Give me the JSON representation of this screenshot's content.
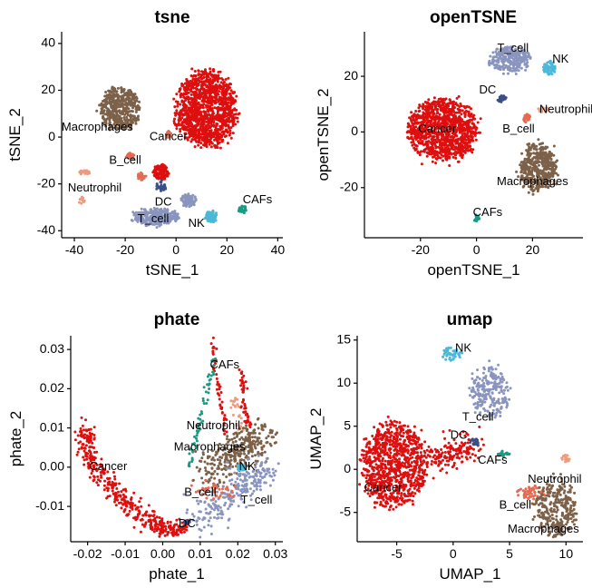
{
  "colors": {
    "Cancer": "#dd0f0f",
    "Macrophages": "#7d6048",
    "T_cell": "#8a95bf",
    "NK": "#4cb8d8",
    "DC": "#3a4f86",
    "B_cell": "#e46a52",
    "Neutrophil": "#ee9a7e",
    "CAFs": "#1a9a82"
  },
  "chart_data": [
    {
      "type": "scatter",
      "title": "tsne",
      "xlabel": "tSNE_1",
      "ylabel": "tSNE_2",
      "xlim": [
        -45,
        42
      ],
      "ylim": [
        -43,
        45
      ],
      "xticks": [
        -40,
        -20,
        0,
        20,
        40
      ],
      "yticks": [
        -40,
        -20,
        0,
        20,
        40
      ],
      "xtick_labels": [
        "-40",
        "-20",
        "0",
        "20",
        "40"
      ],
      "ytick_labels": [
        "-40",
        "-20",
        "0",
        "20",
        "40"
      ],
      "clusters": [
        {
          "name": "Cancer",
          "label": "Cancer",
          "label_xy": [
            -3,
            0
          ],
          "shape": "blob",
          "center": [
            12,
            12
          ],
          "spread": [
            23,
            32
          ],
          "weight": 7
        },
        {
          "name": "Cancer",
          "label": "",
          "label_xy": null,
          "shape": "blob",
          "center": [
            -6,
            -15
          ],
          "spread": [
            6,
            6
          ],
          "weight": 0.7
        },
        {
          "name": "Macrophages",
          "label": "Macrophages",
          "label_xy": [
            -31,
            4
          ],
          "shape": "blob",
          "center": [
            -22,
            12
          ],
          "spread": [
            15,
            18
          ],
          "weight": 2.6
        },
        {
          "name": "B_cell",
          "label": "B_cell",
          "label_xy": [
            -20,
            -10
          ],
          "shape": "blob",
          "center": [
            -18,
            -8
          ],
          "spread": [
            3,
            2.5
          ],
          "weight": 0.2
        },
        {
          "name": "B_cell",
          "label": "",
          "label_xy": null,
          "shape": "blob",
          "center": [
            -3,
            1
          ],
          "spread": [
            2,
            3
          ],
          "weight": 0.1
        },
        {
          "name": "B_cell",
          "label": "",
          "label_xy": null,
          "shape": "blob",
          "center": [
            -14,
            -17
          ],
          "spread": [
            4,
            3
          ],
          "weight": 0.15
        },
        {
          "name": "Neutrophil",
          "label": "Neutrophil",
          "label_xy": [
            -32,
            -22
          ],
          "shape": "blob",
          "center": [
            -36,
            -15
          ],
          "spread": [
            4,
            2
          ],
          "weight": 0.18
        },
        {
          "name": "Neutrophil",
          "label": "",
          "label_xy": null,
          "shape": "blob",
          "center": [
            -37,
            -27
          ],
          "spread": [
            2,
            3
          ],
          "weight": 0.08
        },
        {
          "name": "DC",
          "label": "DC",
          "label_xy": [
            -5,
            -28
          ],
          "shape": "blob",
          "center": [
            -6,
            -21
          ],
          "spread": [
            4,
            4
          ],
          "weight": 0.2
        },
        {
          "name": "T_cell",
          "label": "T_cell",
          "label_xy": [
            -9,
            -35
          ],
          "shape": "blob",
          "center": [
            -8,
            -34
          ],
          "spread": [
            18,
            7
          ],
          "weight": 1.6
        },
        {
          "name": "T_cell",
          "label": "",
          "label_xy": null,
          "shape": "blob",
          "center": [
            5,
            -27
          ],
          "spread": [
            6,
            5
          ],
          "weight": 0.4
        },
        {
          "name": "NK",
          "label": "NK",
          "label_xy": [
            8,
            -37
          ],
          "shape": "blob",
          "center": [
            14,
            -34
          ],
          "spread": [
            5,
            5
          ],
          "weight": 0.4
        },
        {
          "name": "CAFs",
          "label": "CAFs",
          "label_xy": [
            32,
            -27
          ],
          "shape": "blob",
          "center": [
            26,
            -31
          ],
          "spread": [
            3,
            3
          ],
          "weight": 0.15
        }
      ]
    },
    {
      "type": "scatter",
      "title": "openTSNE",
      "xlabel": "openTSNE_1",
      "ylabel": "openTSNE_2",
      "xlim": [
        -40,
        38
      ],
      "ylim": [
        -38,
        36
      ],
      "xticks": [
        -20,
        0,
        20
      ],
      "yticks": [
        -20,
        0,
        20
      ],
      "xtick_labels": [
        "-20",
        "0",
        "20"
      ],
      "ytick_labels": [
        "-20",
        "0",
        "20"
      ],
      "clusters": [
        {
          "name": "Cancer",
          "label": "Cancer",
          "label_xy": [
            -14,
            1
          ],
          "shape": "blob",
          "center": [
            -12,
            1
          ],
          "spread": [
            24,
            22
          ],
          "weight": 6
        },
        {
          "name": "T_cell",
          "label": "T_cell",
          "label_xy": [
            13,
            30
          ],
          "shape": "blob",
          "center": [
            12,
            26
          ],
          "spread": [
            14,
            9
          ],
          "weight": 1.6
        },
        {
          "name": "NK",
          "label": "NK",
          "label_xy": [
            30,
            26
          ],
          "shape": "blob",
          "center": [
            26,
            23
          ],
          "spread": [
            4,
            5
          ],
          "weight": 0.35
        },
        {
          "name": "DC",
          "label": "DC",
          "label_xy": [
            4,
            15
          ],
          "shape": "blob",
          "center": [
            9,
            12
          ],
          "spread": [
            3,
            3
          ],
          "weight": 0.15
        },
        {
          "name": "Neutrophil",
          "label": "Neutrophil",
          "label_xy": [
            32,
            8
          ],
          "shape": "blob",
          "center": [
            24,
            8
          ],
          "spread": [
            4,
            2
          ],
          "weight": 0.12
        },
        {
          "name": "B_cell",
          "label": "B_cell",
          "label_xy": [
            15,
            1
          ],
          "shape": "blob",
          "center": [
            18,
            5
          ],
          "spread": [
            3,
            3
          ],
          "weight": 0.15
        },
        {
          "name": "Macrophages",
          "label": "Macrophages",
          "label_xy": [
            20,
            -18
          ],
          "shape": "blob",
          "center": [
            22,
            -13
          ],
          "spread": [
            13,
            18
          ],
          "weight": 2.4
        },
        {
          "name": "CAFs",
          "label": "CAFs",
          "label_xy": [
            4,
            -29
          ],
          "shape": "blob",
          "center": [
            0,
            -31
          ],
          "spread": [
            2,
            3
          ],
          "weight": 0.12
        }
      ]
    },
    {
      "type": "scatter",
      "title": "phate",
      "xlabel": "phate_1",
      "ylabel": "phate_2",
      "xlim": [
        -0.0245,
        0.032
      ],
      "ylim": [
        -0.019,
        0.0335
      ],
      "xticks": [
        -0.02,
        -0.01,
        0.0,
        0.01,
        0.02,
        0.03
      ],
      "yticks": [
        -0.01,
        0.0,
        0.01,
        0.02,
        0.03
      ],
      "xtick_labels": [
        "-0.02",
        "-0.01",
        "0.00",
        "0.01",
        "0.02",
        "0.03"
      ],
      "ytick_labels": [
        "-0.01",
        "0.00",
        "0.01",
        "0.02",
        "0.03"
      ],
      "clusters": [
        {
          "name": "Cancer",
          "label": "Cancer",
          "label_xy": [
            -0.0145,
            0.0
          ],
          "shape": "path",
          "points": [
            [
              -0.0205,
              0.01
            ],
            [
              -0.0205,
              0.006
            ],
            [
              -0.018,
              0.0
            ],
            [
              -0.013,
              -0.006
            ],
            [
              -0.008,
              -0.011
            ],
            [
              -0.003,
              -0.014
            ],
            [
              0.002,
              -0.016
            ],
            [
              0.006,
              -0.015
            ]
          ],
          "spread": [
            0.0012,
            0.0012
          ],
          "weight": 2.4
        },
        {
          "name": "Cancer",
          "label": "",
          "label_xy": null,
          "shape": "path",
          "points": [
            [
              0.013,
              0.033
            ],
            [
              0.015,
              0.02
            ],
            [
              0.017,
              0.008
            ]
          ],
          "spread": [
            0.0004,
            0.0004
          ],
          "weight": 0.3
        },
        {
          "name": "Cancer",
          "label": "",
          "label_xy": null,
          "shape": "path",
          "points": [
            [
              0.021,
              0.025
            ],
            [
              0.022,
              0.015
            ],
            [
              0.023,
              0.01
            ]
          ],
          "spread": [
            0.0004,
            0.0004
          ],
          "weight": 0.3
        },
        {
          "name": "CAFs",
          "label": "CAFs",
          "label_xy": [
            0.0165,
            0.026
          ],
          "shape": "path",
          "points": [
            [
              0.014,
              0.028
            ],
            [
              0.011,
              0.016
            ],
            [
              0.007,
              0.0
            ]
          ],
          "spread": [
            0.0004,
            0.0004
          ],
          "weight": 0.35
        },
        {
          "name": "Neutrophil",
          "label": "Neutrophil",
          "label_xy": [
            0.0135,
            0.0105
          ],
          "shape": "path",
          "points": [
            [
              0.019,
              0.018
            ],
            [
              0.021,
              0.008
            ]
          ],
          "spread": [
            0.0006,
            0.0006
          ],
          "weight": 0.15
        },
        {
          "name": "Macrophages",
          "label": "Macrophages",
          "label_xy": [
            0.0125,
            0.005
          ],
          "shape": "path",
          "points": [
            [
              0.012,
              -0.002
            ],
            [
              0.02,
              0.004
            ],
            [
              0.027,
              0.008
            ]
          ],
          "spread": [
            0.0025,
            0.0025
          ],
          "weight": 1.8
        },
        {
          "name": "T_cell",
          "label": "T_cell",
          "label_xy": [
            0.025,
            -0.0085
          ],
          "shape": "path",
          "points": [
            [
              0.009,
              -0.014
            ],
            [
              0.016,
              -0.009
            ],
            [
              0.023,
              -0.004
            ],
            [
              0.028,
              0.0
            ]
          ],
          "spread": [
            0.002,
            0.002
          ],
          "weight": 1.4
        },
        {
          "name": "NK",
          "label": "NK",
          "label_xy": [
            0.0225,
            0.0
          ],
          "shape": "blob",
          "center": [
            0.021,
            0.0
          ],
          "spread": [
            0.002,
            0.002
          ],
          "weight": 0.2
        },
        {
          "name": "B_cell",
          "label": "B_cell",
          "label_xy": [
            0.01,
            -0.0065
          ],
          "shape": "path",
          "points": [
            [
              0.009,
              -0.005
            ],
            [
              0.019,
              -0.007
            ]
          ],
          "spread": [
            0.001,
            0.001
          ],
          "weight": 0.25
        },
        {
          "name": "DC",
          "label": "DC",
          "label_xy": [
            0.0065,
            -0.0145
          ],
          "shape": "blob",
          "center": [
            0.0065,
            -0.014
          ],
          "spread": [
            0.0015,
            0.0008
          ],
          "weight": 0.12
        }
      ]
    },
    {
      "type": "scatter",
      "title": "umap",
      "xlabel": "UMAP_1",
      "ylabel": "UMAP_2",
      "xlim": [
        -8.5,
        11.5
      ],
      "ylim": [
        -8.4,
        15.5
      ],
      "xticks": [
        -5,
        0,
        5,
        10
      ],
      "yticks": [
        -5,
        0,
        5,
        10,
        15
      ],
      "xtick_labels": [
        "-5",
        "0",
        "5",
        "10"
      ],
      "ytick_labels": [
        "-5",
        "0",
        "5",
        "10",
        "15"
      ],
      "clusters": [
        {
          "name": "Cancer",
          "label": "Cancer",
          "label_xy": [
            -6.2,
            -2.2
          ],
          "shape": "blob",
          "center": [
            -5.2,
            0.5
          ],
          "spread": [
            5.5,
            9.5
          ],
          "weight": 5
        },
        {
          "name": "Cancer",
          "label": "",
          "label_xy": null,
          "shape": "path",
          "points": [
            [
              -2.0,
              1.2
            ],
            [
              0.0,
              1.7
            ],
            [
              1.8,
              3.0
            ]
          ],
          "spread": [
            0.7,
            0.9
          ],
          "weight": 0.9
        },
        {
          "name": "NK",
          "label": "NK",
          "label_xy": [
            0.9,
            14.0
          ],
          "shape": "blob",
          "center": [
            -0.2,
            13.4
          ],
          "spread": [
            1.8,
            1.5
          ],
          "weight": 0.25
        },
        {
          "name": "T_cell",
          "label": "T_cell",
          "label_xy": [
            2.2,
            6.0
          ],
          "shape": "blob",
          "center": [
            3.2,
            9.0
          ],
          "spread": [
            3.4,
            6.0
          ],
          "weight": 1.3
        },
        {
          "name": "DC",
          "label": "DC",
          "label_xy": [
            0.5,
            3.9
          ],
          "shape": "blob",
          "center": [
            1.9,
            3.2
          ],
          "spread": [
            0.8,
            0.8
          ],
          "weight": 0.1
        },
        {
          "name": "CAFs",
          "label": "CAFs",
          "label_xy": [
            3.5,
            1.0
          ],
          "shape": "blob",
          "center": [
            4.5,
            1.8
          ],
          "spread": [
            1.2,
            0.6
          ],
          "weight": 0.12
        },
        {
          "name": "Neutrophil",
          "label": "Neutrophil",
          "label_xy": [
            9.0,
            -1.2
          ],
          "shape": "blob",
          "center": [
            10.0,
            1.2
          ],
          "spread": [
            0.8,
            0.8
          ],
          "weight": 0.1
        },
        {
          "name": "B_cell",
          "label": "B_cell",
          "label_xy": [
            5.5,
            -4.2
          ],
          "shape": "blob",
          "center": [
            7.0,
            -2.7
          ],
          "spread": [
            2.8,
            1.6
          ],
          "weight": 0.35
        },
        {
          "name": "Macrophages",
          "label": "Macrophages",
          "label_xy": [
            8.0,
            -7.0
          ],
          "shape": "blob",
          "center": [
            9.0,
            -4.5
          ],
          "spread": [
            3.6,
            6.5
          ],
          "weight": 1.6
        }
      ]
    }
  ]
}
